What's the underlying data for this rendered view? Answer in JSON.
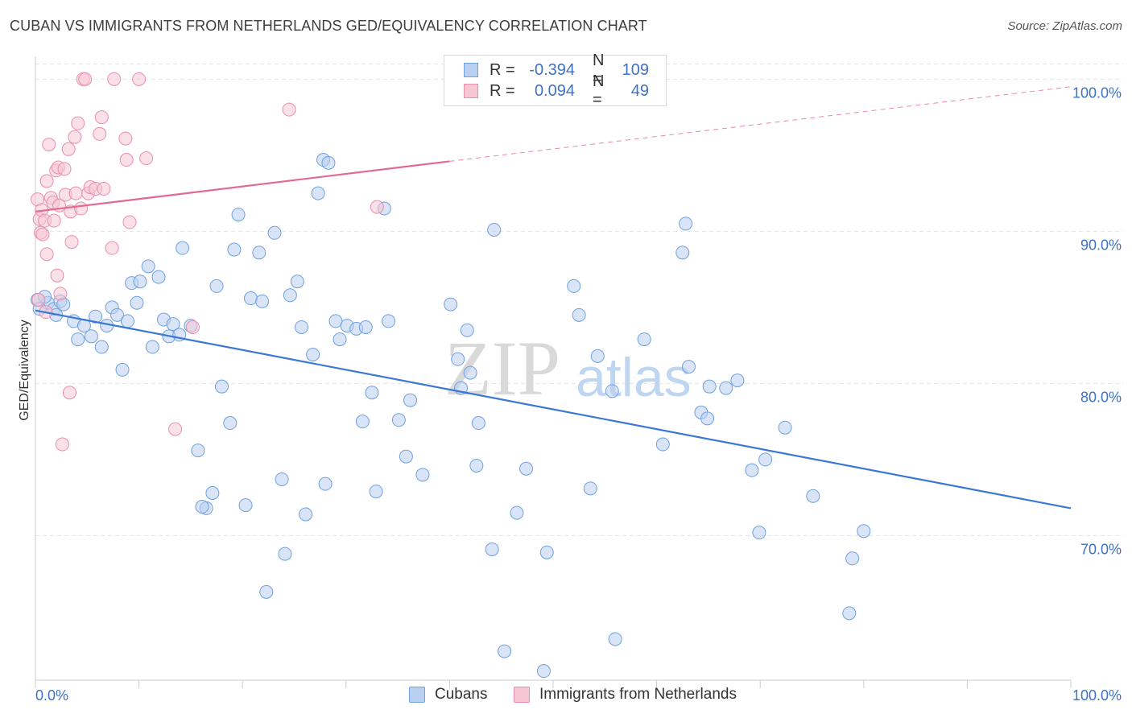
{
  "title": "CUBAN VS IMMIGRANTS FROM NETHERLANDS GED/EQUIVALENCY CORRELATION CHART",
  "source": "Source: ZipAtlas.com",
  "watermark": {
    "zip": "ZIP",
    "atlas": "atlas"
  },
  "legend": {
    "rows": [
      {
        "r_label": "R =",
        "r_value": "-0.394",
        "n_label": "N =",
        "n_value": "109",
        "color": "#6fa0e0",
        "fill": "#b9d0f0"
      },
      {
        "r_label": "R =",
        "r_value": "0.094",
        "n_label": "N =",
        "n_value": "49",
        "color": "#e890aa",
        "fill": "#f6c6d3"
      }
    ]
  },
  "bottom_legend": [
    {
      "label": "Cubans",
      "color": "#6fa0e0",
      "fill": "#b9d0f0"
    },
    {
      "label": "Immigrants from Netherlands",
      "color": "#e890aa",
      "fill": "#f6c6d3"
    }
  ],
  "chart_data": {
    "type": "scatter",
    "title": "CUBAN VS IMMIGRANTS FROM NETHERLANDS GED/EQUIVALENCY CORRELATION CHART",
    "xlabel": "",
    "ylabel": "GED/Equivalency",
    "xlim": [
      0,
      100
    ],
    "ylim": [
      60.5,
      101.5
    ],
    "x_tick_labels": [
      "0.0%",
      "100.0%"
    ],
    "y_ticks": [
      70,
      80,
      90,
      100
    ],
    "y_tick_labels": [
      "70.0%",
      "80.0%",
      "90.0%",
      "100.0%"
    ],
    "grid": true,
    "legend_position": "top-center",
    "series": [
      {
        "name": "Cubans",
        "color": "#3a78d4",
        "marker_fill": "#b9d0f0",
        "marker_stroke": "#6fa0e0",
        "trend": {
          "x": [
            0,
            100
          ],
          "y": [
            84.8,
            71.8
          ],
          "style": "solid"
        },
        "points": [
          [
            0.2,
            85.5
          ],
          [
            1.2,
            85.3
          ],
          [
            1.8,
            84.9
          ],
          [
            2.0,
            84.5
          ],
          [
            2.4,
            85.4
          ],
          [
            2.7,
            85.2
          ],
          [
            3.7,
            84.1
          ],
          [
            4.1,
            82.9
          ],
          [
            4.7,
            83.8
          ],
          [
            5.4,
            83.1
          ],
          [
            5.8,
            84.4
          ],
          [
            6.4,
            82.4
          ],
          [
            6.9,
            83.8
          ],
          [
            7.4,
            85.0
          ],
          [
            7.9,
            84.5
          ],
          [
            8.4,
            80.9
          ],
          [
            8.9,
            84.1
          ],
          [
            9.3,
            86.6
          ],
          [
            9.8,
            85.3
          ],
          [
            10.1,
            86.7
          ],
          [
            10.9,
            87.7
          ],
          [
            11.3,
            82.4
          ],
          [
            11.9,
            87.0
          ],
          [
            12.4,
            84.2
          ],
          [
            12.9,
            83.1
          ],
          [
            13.3,
            83.9
          ],
          [
            13.9,
            83.2
          ],
          [
            14.2,
            88.9
          ],
          [
            15.0,
            83.8
          ],
          [
            15.7,
            75.6
          ],
          [
            16.5,
            71.8
          ],
          [
            16.1,
            71.9
          ],
          [
            17.1,
            72.8
          ],
          [
            17.5,
            86.4
          ],
          [
            18.0,
            79.8
          ],
          [
            18.8,
            77.4
          ],
          [
            19.2,
            88.8
          ],
          [
            19.6,
            91.1
          ],
          [
            20.3,
            72.0
          ],
          [
            20.8,
            85.6
          ],
          [
            21.6,
            88.6
          ],
          [
            21.9,
            85.4
          ],
          [
            22.3,
            66.3
          ],
          [
            23.1,
            89.9
          ],
          [
            23.8,
            73.7
          ],
          [
            24.1,
            68.8
          ],
          [
            24.6,
            85.8
          ],
          [
            25.3,
            86.7
          ],
          [
            25.7,
            83.7
          ],
          [
            26.1,
            71.4
          ],
          [
            26.8,
            81.9
          ],
          [
            27.3,
            92.5
          ],
          [
            27.8,
            94.7
          ],
          [
            28.0,
            73.4
          ],
          [
            28.3,
            94.5
          ],
          [
            29.0,
            84.1
          ],
          [
            29.4,
            82.9
          ],
          [
            30.1,
            83.8
          ],
          [
            31.0,
            83.6
          ],
          [
            31.6,
            77.5
          ],
          [
            31.9,
            83.7
          ],
          [
            32.5,
            79.4
          ],
          [
            32.9,
            72.9
          ],
          [
            33.7,
            91.5
          ],
          [
            34.1,
            84.1
          ],
          [
            35.1,
            77.6
          ],
          [
            35.8,
            75.2
          ],
          [
            36.2,
            78.9
          ],
          [
            37.4,
            74.0
          ],
          [
            40.1,
            85.2
          ],
          [
            40.8,
            81.6
          ],
          [
            41.1,
            79.7
          ],
          [
            41.7,
            83.5
          ],
          [
            42.0,
            80.7
          ],
          [
            42.6,
            74.6
          ],
          [
            42.8,
            77.4
          ],
          [
            44.1,
            69.1
          ],
          [
            44.3,
            90.1
          ],
          [
            45.3,
            62.4
          ],
          [
            46.5,
            71.5
          ],
          [
            47.4,
            74.4
          ],
          [
            49.1,
            61.1
          ],
          [
            49.4,
            68.9
          ],
          [
            52.0,
            86.4
          ],
          [
            52.5,
            84.5
          ],
          [
            53.6,
            73.1
          ],
          [
            54.3,
            81.8
          ],
          [
            55.7,
            79.5
          ],
          [
            56.0,
            63.2
          ],
          [
            58.8,
            82.9
          ],
          [
            60.6,
            76.0
          ],
          [
            62.5,
            88.6
          ],
          [
            62.8,
            90.5
          ],
          [
            63.1,
            81.1
          ],
          [
            64.3,
            78.1
          ],
          [
            64.9,
            77.7
          ],
          [
            65.1,
            79.8
          ],
          [
            66.7,
            79.7
          ],
          [
            67.8,
            80.2
          ],
          [
            69.2,
            74.3
          ],
          [
            69.9,
            70.2
          ],
          [
            70.5,
            75.0
          ],
          [
            72.4,
            77.1
          ],
          [
            75.1,
            72.6
          ],
          [
            78.6,
            64.9
          ],
          [
            78.9,
            68.5
          ],
          [
            80.0,
            70.3
          ],
          [
            0.4,
            84.9
          ],
          [
            0.9,
            85.7
          ]
        ]
      },
      {
        "name": "Immigrants from Netherlands",
        "color": "#e06a92",
        "marker_fill": "#f6c6d3",
        "marker_stroke": "#e890aa",
        "trend": {
          "x": [
            0,
            40
          ],
          "y": [
            91.3,
            94.6
          ],
          "style": "solid",
          "dashed_to": {
            "x": 100,
            "y": 99.5
          }
        },
        "points": [
          [
            0.2,
            92.1
          ],
          [
            0.4,
            90.8
          ],
          [
            0.5,
            89.9
          ],
          [
            0.6,
            91.4
          ],
          [
            0.7,
            89.8
          ],
          [
            0.9,
            90.7
          ],
          [
            1.1,
            93.3
          ],
          [
            1.1,
            88.5
          ],
          [
            1.3,
            95.7
          ],
          [
            1.5,
            92.2
          ],
          [
            1.7,
            91.9
          ],
          [
            1.8,
            90.7
          ],
          [
            2.0,
            94.0
          ],
          [
            2.1,
            87.1
          ],
          [
            2.2,
            94.2
          ],
          [
            2.3,
            91.7
          ],
          [
            2.4,
            85.9
          ],
          [
            2.6,
            76.0
          ],
          [
            2.8,
            94.1
          ],
          [
            2.9,
            92.4
          ],
          [
            3.2,
            95.4
          ],
          [
            3.3,
            79.4
          ],
          [
            3.4,
            91.3
          ],
          [
            3.5,
            89.3
          ],
          [
            3.8,
            96.2
          ],
          [
            3.9,
            92.5
          ],
          [
            4.1,
            97.1
          ],
          [
            4.4,
            91.5
          ],
          [
            4.6,
            100.0
          ],
          [
            4.8,
            100.0
          ],
          [
            5.1,
            92.5
          ],
          [
            5.3,
            92.9
          ],
          [
            5.8,
            92.8
          ],
          [
            6.2,
            96.4
          ],
          [
            6.4,
            97.5
          ],
          [
            6.6,
            92.8
          ],
          [
            7.4,
            88.9
          ],
          [
            7.6,
            100.0
          ],
          [
            8.7,
            96.1
          ],
          [
            8.8,
            94.7
          ],
          [
            9.1,
            90.6
          ],
          [
            10.0,
            100.0
          ],
          [
            10.7,
            94.8
          ],
          [
            13.5,
            77.0
          ],
          [
            15.2,
            83.7
          ],
          [
            24.5,
            98.0
          ],
          [
            33.0,
            91.6
          ],
          [
            0.3,
            85.5
          ],
          [
            1.0,
            84.7
          ]
        ]
      }
    ]
  }
}
